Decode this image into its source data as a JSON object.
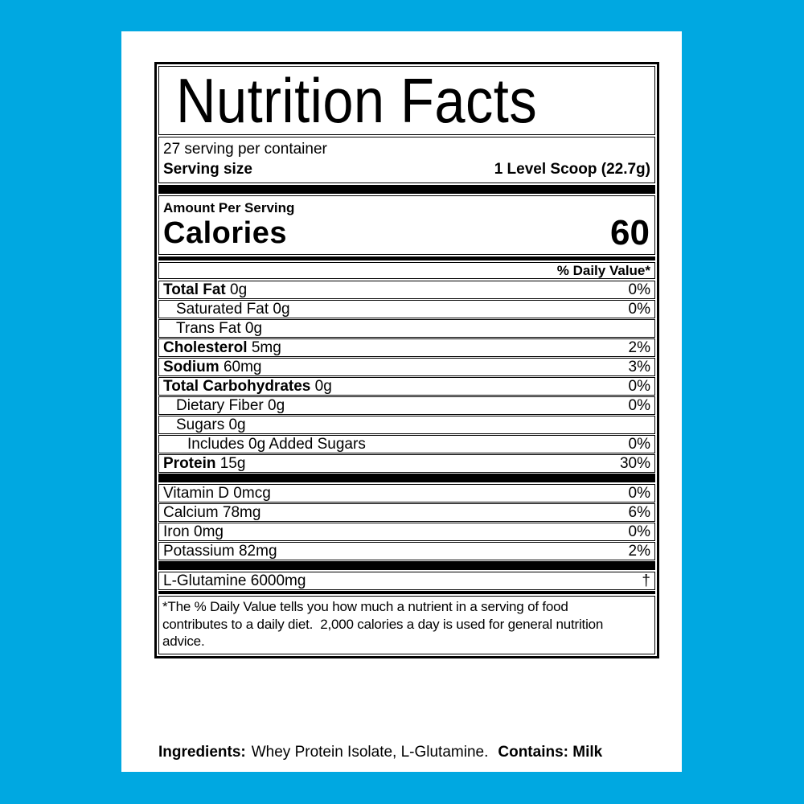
{
  "colors": {
    "background": "#00A8E1",
    "surface": "#FFFFFF",
    "text": "#000000"
  },
  "label": {
    "title": "Nutrition Facts",
    "servings_per_container": "27 serving per container",
    "serving_size": {
      "label": "Serving size",
      "value": "1 Level Scoop (22.7g)"
    },
    "amount_per_serving": "Amount Per Serving",
    "calories": {
      "label": "Calories",
      "value": "60"
    },
    "daily_value_header": "% Daily Value*",
    "nutrients": [
      {
        "name": "Total Fat",
        "amount": "0g",
        "dv": "0%"
      },
      {
        "name": "Saturated Fat",
        "amount": "0g",
        "dv": "0%"
      },
      {
        "name": "Trans Fat",
        "amount": "0g",
        "dv": ""
      },
      {
        "name": "Cholesterol",
        "amount": "5mg",
        "dv": "2%"
      },
      {
        "name": "Sodium",
        "amount": "60mg",
        "dv": "3%"
      },
      {
        "name": "Total Carbohydrates",
        "amount": "0g",
        "dv": "0%"
      },
      {
        "name": "Dietary Fiber",
        "amount": "0g",
        "dv": "0%"
      },
      {
        "name": "Sugars",
        "amount": "0g",
        "dv": ""
      },
      {
        "name": "Includes 0g Added Sugars",
        "amount": "",
        "dv": "0%"
      },
      {
        "name": "Protein",
        "amount": "15g",
        "dv": "30%"
      }
    ],
    "vitamins": [
      {
        "name": "Vitamin D",
        "amount": "0mcg",
        "dv": "0%"
      },
      {
        "name": "Calcium",
        "amount": "78mg",
        "dv": "6%"
      },
      {
        "name": "Iron",
        "amount": "0mg",
        "dv": "0%"
      },
      {
        "name": "Potassium",
        "amount": "82mg",
        "dv": "2%"
      }
    ],
    "supplement": {
      "name": "L-Glutamine",
      "amount": "6000mg",
      "symbol": "†"
    },
    "footnote_lines": [
      "*The % Daily Value tells you how much a nutrient in a serving of food",
      "contributes to a daily diet.  2,000 calories a day is used for general nutrition",
      "advice."
    ]
  },
  "ingredients": {
    "label": "Ingredients:",
    "items": "Whey Protein Isolate, L-Glutamine.",
    "contains": "Contains: Milk"
  }
}
